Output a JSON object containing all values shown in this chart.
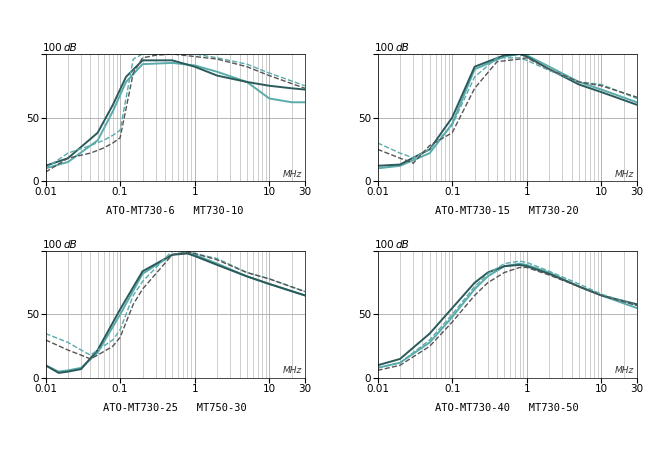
{
  "subplots": [
    {
      "label": "ATO-MT730-6   MT730-10",
      "curves": [
        {
          "color": "#5aabab",
          "lw": 1.4,
          "ls": "solid",
          "x": [
            0.01,
            0.02,
            0.05,
            0.08,
            0.12,
            0.2,
            0.5,
            1.0,
            2.0,
            5.0,
            10.0,
            20.0,
            30.0
          ],
          "y": [
            10,
            15,
            32,
            55,
            78,
            92,
            93,
            91,
            86,
            78,
            65,
            62,
            62
          ]
        },
        {
          "color": "#2a5a5a",
          "lw": 1.4,
          "ls": "solid",
          "x": [
            0.01,
            0.02,
            0.05,
            0.08,
            0.12,
            0.2,
            0.5,
            1.0,
            2.0,
            5.0,
            10.0,
            20.0,
            30.0
          ],
          "y": [
            12,
            18,
            38,
            60,
            82,
            95,
            95,
            90,
            83,
            78,
            75,
            73,
            72
          ]
        },
        {
          "color": "#5aabab",
          "lw": 1.0,
          "ls": "dashed",
          "x": [
            0.01,
            0.02,
            0.04,
            0.06,
            0.08,
            0.1,
            0.15,
            0.2,
            0.3,
            0.5,
            1.0,
            2.0,
            5.0,
            10.0,
            30.0
          ],
          "y": [
            10,
            22,
            28,
            32,
            36,
            40,
            96,
            100,
            100,
            100,
            100,
            97,
            92,
            85,
            75
          ]
        },
        {
          "color": "#555555",
          "lw": 1.0,
          "ls": "dashed",
          "x": [
            0.01,
            0.02,
            0.04,
            0.06,
            0.08,
            0.1,
            0.15,
            0.2,
            0.3,
            0.5,
            1.0,
            2.0,
            5.0,
            10.0,
            30.0
          ],
          "y": [
            7,
            18,
            22,
            26,
            30,
            34,
            85,
            97,
            99,
            100,
            98,
            96,
            90,
            83,
            73
          ]
        }
      ]
    },
    {
      "label": "ATO-MT730-15   MT730-20",
      "curves": [
        {
          "color": "#5aabab",
          "lw": 1.4,
          "ls": "solid",
          "x": [
            0.01,
            0.02,
            0.05,
            0.1,
            0.2,
            0.5,
            0.8,
            1.0,
            2.0,
            5.0,
            10.0,
            30.0
          ],
          "y": [
            10,
            12,
            22,
            45,
            88,
            98,
            100,
            99,
            90,
            78,
            72,
            62
          ]
        },
        {
          "color": "#2a5a5a",
          "lw": 1.4,
          "ls": "solid",
          "x": [
            0.01,
            0.02,
            0.05,
            0.1,
            0.2,
            0.5,
            0.8,
            1.0,
            2.0,
            5.0,
            10.0,
            30.0
          ],
          "y": [
            12,
            13,
            25,
            50,
            90,
            99,
            100,
            98,
            88,
            76,
            70,
            60
          ]
        },
        {
          "color": "#5aabab",
          "lw": 1.0,
          "ls": "dashed",
          "x": [
            0.01,
            0.02,
            0.025,
            0.03,
            0.05,
            0.1,
            0.2,
            0.4,
            0.8,
            1.0,
            2.0,
            5.0,
            10.0,
            30.0
          ],
          "y": [
            30,
            22,
            20,
            18,
            25,
            44,
            82,
            97,
            97,
            95,
            87,
            78,
            76,
            65
          ]
        },
        {
          "color": "#555555",
          "lw": 1.0,
          "ls": "dashed",
          "x": [
            0.01,
            0.02,
            0.025,
            0.03,
            0.05,
            0.1,
            0.2,
            0.4,
            0.8,
            1.0,
            2.0,
            5.0,
            10.0,
            30.0
          ],
          "y": [
            25,
            18,
            16,
            14,
            28,
            38,
            73,
            94,
            96,
            97,
            88,
            78,
            75,
            66
          ]
        }
      ]
    },
    {
      "label": "ATO-MT730-25   MT750-30",
      "curves": [
        {
          "color": "#5aabab",
          "lw": 1.4,
          "ls": "solid",
          "x": [
            0.01,
            0.015,
            0.02,
            0.03,
            0.05,
            0.1,
            0.2,
            0.5,
            0.8,
            1.0,
            2.0,
            5.0,
            10.0,
            30.0
          ],
          "y": [
            10,
            5,
            6,
            8,
            20,
            50,
            82,
            97,
            99,
            97,
            90,
            80,
            74,
            65
          ]
        },
        {
          "color": "#2a5a5a",
          "lw": 1.4,
          "ls": "solid",
          "x": [
            0.01,
            0.015,
            0.02,
            0.03,
            0.05,
            0.1,
            0.2,
            0.5,
            0.8,
            1.0,
            2.0,
            5.0,
            10.0,
            30.0
          ],
          "y": [
            10,
            4,
            5,
            7,
            22,
            54,
            84,
            97,
            98,
            96,
            89,
            80,
            74,
            65
          ]
        },
        {
          "color": "#5aabab",
          "lw": 1.0,
          "ls": "dashed",
          "x": [
            0.01,
            0.02,
            0.03,
            0.04,
            0.05,
            0.08,
            0.1,
            0.15,
            0.2,
            0.5,
            0.8,
            1.0,
            2.0,
            5.0,
            10.0,
            30.0
          ],
          "y": [
            35,
            28,
            22,
            18,
            22,
            30,
            38,
            65,
            76,
            100,
            100,
            98,
            94,
            83,
            78,
            68
          ]
        },
        {
          "color": "#555555",
          "lw": 1.0,
          "ls": "dashed",
          "x": [
            0.01,
            0.02,
            0.03,
            0.04,
            0.05,
            0.08,
            0.1,
            0.15,
            0.2,
            0.5,
            0.8,
            1.0,
            2.0,
            5.0,
            10.0,
            30.0
          ],
          "y": [
            30,
            22,
            18,
            15,
            18,
            25,
            32,
            58,
            70,
            97,
            99,
            98,
            93,
            83,
            78,
            68
          ]
        }
      ]
    },
    {
      "label": "ATO-MT730-40   MT730-50",
      "curves": [
        {
          "color": "#5aabab",
          "lw": 1.4,
          "ls": "solid",
          "x": [
            0.01,
            0.02,
            0.05,
            0.1,
            0.2,
            0.3,
            0.5,
            0.8,
            1.0,
            2.0,
            5.0,
            10.0,
            30.0
          ],
          "y": [
            8,
            12,
            28,
            48,
            70,
            80,
            88,
            90,
            89,
            83,
            72,
            65,
            55
          ]
        },
        {
          "color": "#2a5a5a",
          "lw": 1.4,
          "ls": "solid",
          "x": [
            0.01,
            0.02,
            0.05,
            0.1,
            0.2,
            0.3,
            0.5,
            0.8,
            1.0,
            2.0,
            5.0,
            10.0,
            30.0
          ],
          "y": [
            10,
            15,
            35,
            55,
            75,
            83,
            88,
            89,
            88,
            82,
            72,
            65,
            58
          ]
        },
        {
          "color": "#5aabab",
          "lw": 1.0,
          "ls": "dashed",
          "x": [
            0.01,
            0.02,
            0.05,
            0.1,
            0.2,
            0.3,
            0.5,
            0.8,
            1.0,
            2.0,
            5.0,
            10.0,
            30.0
          ],
          "y": [
            8,
            12,
            30,
            50,
            72,
            82,
            90,
            92,
            91,
            84,
            74,
            66,
            57
          ]
        },
        {
          "color": "#555555",
          "lw": 1.0,
          "ls": "dashed",
          "x": [
            0.01,
            0.02,
            0.05,
            0.1,
            0.2,
            0.3,
            0.5,
            0.8,
            1.0,
            2.0,
            5.0,
            10.0,
            30.0
          ],
          "y": [
            6,
            10,
            25,
            44,
            65,
            75,
            83,
            87,
            87,
            81,
            72,
            65,
            57
          ]
        }
      ]
    }
  ],
  "ylim": [
    0,
    100
  ],
  "xlim": [
    0.01,
    30
  ],
  "yticks": [
    0,
    50,
    100
  ],
  "xticks": [
    0.01,
    0.1,
    1,
    10,
    30
  ],
  "grid_color": "#aaaaaa",
  "bg_color": "#ffffff",
  "db_label": "dB",
  "mhz_label": "MHz"
}
